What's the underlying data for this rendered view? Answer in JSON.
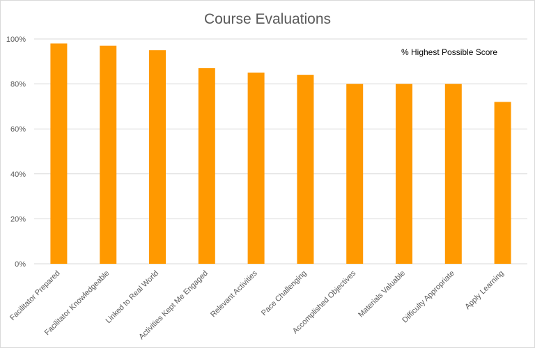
{
  "chart_data": {
    "type": "bar",
    "title": "Course Evaluations",
    "annotation": "% Highest Possible Score",
    "xlabel": "",
    "ylabel": "",
    "ylim": [
      0,
      100
    ],
    "yticks": [
      0,
      20,
      40,
      60,
      80,
      100
    ],
    "ytick_labels": [
      "0%",
      "20%",
      "40%",
      "60%",
      "80%",
      "100%"
    ],
    "grid": true,
    "bar_color": "#FF9900",
    "categories": [
      "Facilitator Prepared",
      "Facilitator Knowledgeable",
      "Linked to Real World",
      "Activities Kept Me Engaged",
      "Relevant Activities",
      "Pace Challenging",
      "Accomplished Objectives",
      "Materials Valuable",
      "Difficulty Appropriate",
      "Apply Learning"
    ],
    "values": [
      98,
      97,
      95,
      87,
      85,
      84,
      80,
      80,
      80,
      72
    ]
  }
}
